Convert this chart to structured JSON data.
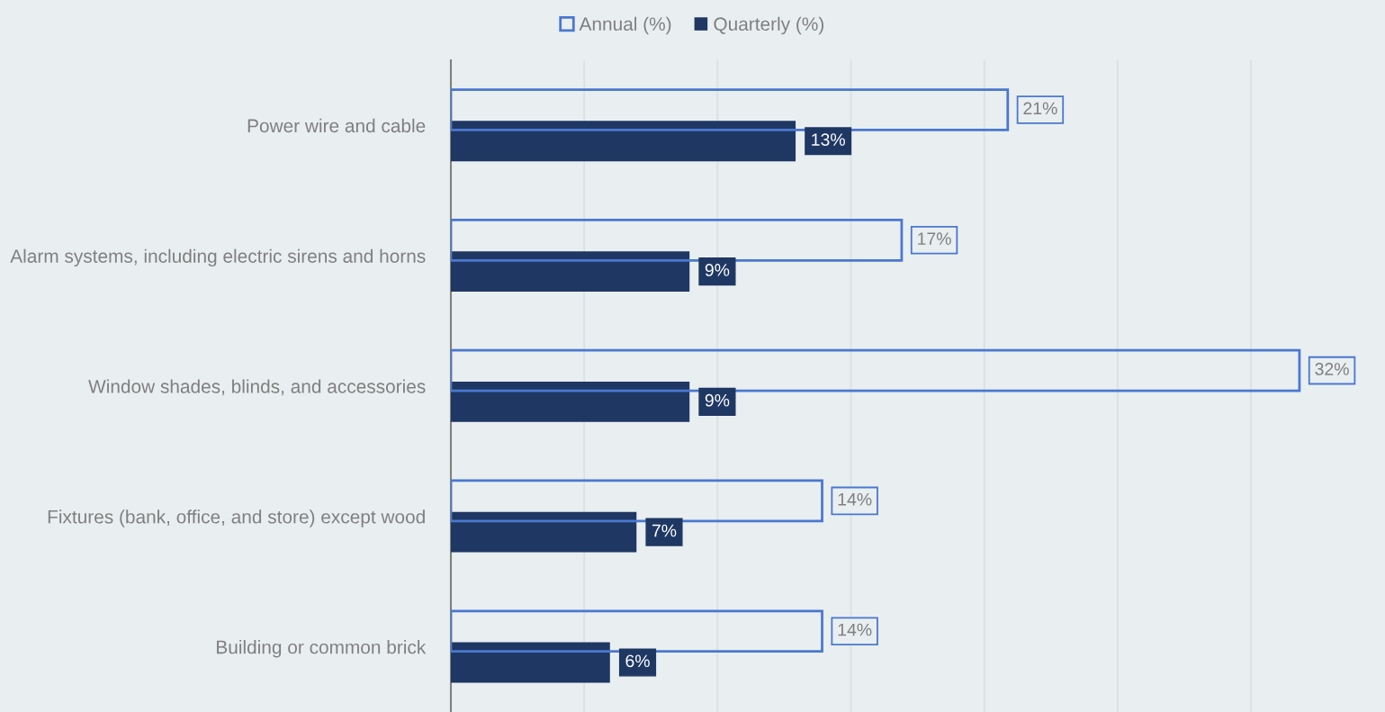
{
  "chart_data": {
    "type": "bar",
    "orientation": "horizontal",
    "categories": [
      "Power wire and cable",
      "Alarm systems, including electric sirens and horns",
      "Window shades, blinds, and accessories",
      "Fixtures (bank, office, and store) except wood",
      "Building or common brick"
    ],
    "series": [
      {
        "name": "Annual (%)",
        "color": "#4a78d0",
        "values": [
          21,
          17,
          32,
          14,
          14
        ],
        "value_labels": [
          "21%",
          "17%",
          "32%",
          "14%",
          "14%"
        ]
      },
      {
        "name": "Quarterly (%)",
        "color": "#1f3763",
        "values": [
          13,
          9,
          9,
          7,
          6
        ],
        "value_labels": [
          "13%",
          "9%",
          "9%",
          "7%",
          "6%"
        ]
      }
    ],
    "tick_labels": "y",
    "grid": "x",
    "legend": "top"
  }
}
